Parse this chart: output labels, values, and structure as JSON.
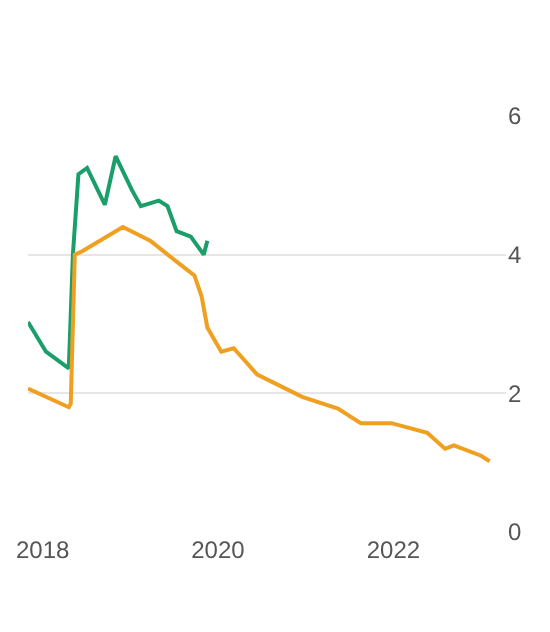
{
  "chart_data": {
    "type": "line",
    "xlim": [
      "2017-11-01",
      "2023-04-15"
    ],
    "xticks": [
      {
        "value": "2018-01-01",
        "label": "2018"
      },
      {
        "value": "2020-01-01",
        "label": "2020"
      },
      {
        "value": "2022-01-01",
        "label": "2022"
      }
    ],
    "ylim": [
      0,
      6
    ],
    "yticks": [
      0,
      2,
      4,
      6
    ],
    "grid": "y",
    "series": [
      {
        "color": "#1a9e6a",
        "x": [
          "2017-11-01",
          "2018-01-15",
          "2018-04-20",
          "2018-05-07",
          "2018-05-30",
          "2018-07-05",
          "2018-09-17",
          "2018-11-01",
          "2019-01-08",
          "2019-02-14",
          "2019-04-30",
          "2019-06-05",
          "2019-07-13",
          "2019-09-10",
          "2019-11-03",
          "2019-11-18"
        ],
        "values": [
          3.03,
          2.6,
          2.36,
          4.0,
          5.16,
          5.25,
          4.72,
          5.42,
          4.93,
          4.7,
          4.78,
          4.7,
          4.34,
          4.26,
          4.0,
          4.2
        ]
      },
      {
        "color": "#f0a020",
        "x": [
          "2017-11-01",
          "2018-04-20",
          "2018-04-28",
          "2018-05-15",
          "2018-06-15",
          "2018-12-01",
          "2019-03-25",
          "2019-07-13",
          "2019-09-25",
          "2019-10-25",
          "2019-11-18",
          "2020-01-15",
          "2020-03-07",
          "2020-06-13",
          "2020-12-17",
          "2021-05-15",
          "2021-08-18",
          "2021-12-24",
          "2022-05-22",
          "2022-08-04",
          "2022-09-10",
          "2023-01-01",
          "2023-02-06"
        ],
        "values": [
          2.07,
          1.8,
          1.85,
          4.0,
          4.05,
          4.4,
          4.2,
          3.9,
          3.7,
          3.4,
          2.95,
          2.6,
          2.65,
          2.27,
          1.95,
          1.78,
          1.57,
          1.57,
          1.43,
          1.2,
          1.25,
          1.1,
          1.02
        ]
      }
    ]
  }
}
